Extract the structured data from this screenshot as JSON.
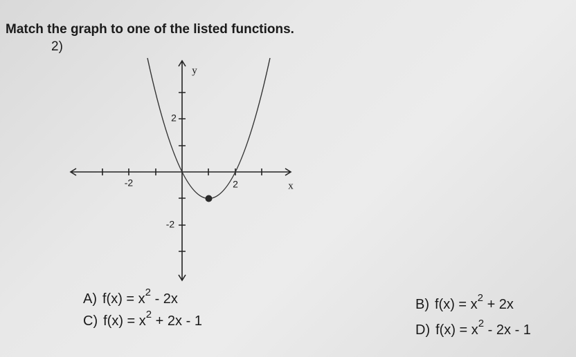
{
  "question": {
    "instruction": "Match the graph to one of the listed functions.",
    "number": "2)"
  },
  "graph": {
    "x_axis_label": "x",
    "y_axis_label": "y",
    "x_tick_labels": [
      "-2",
      "2"
    ],
    "y_tick_labels": [
      "2",
      "-2"
    ]
  },
  "options": [
    {
      "label": "A)",
      "parts": [
        "f(x) = x",
        "2",
        " - 2x"
      ]
    },
    {
      "label": "B)",
      "parts": [
        "f(x) = x",
        "2",
        " + 2x"
      ]
    },
    {
      "label": "C)",
      "parts": [
        "f(x) = x",
        "2",
        " + 2x - 1"
      ]
    },
    {
      "label": "D)",
      "parts": [
        "f(x) = x",
        "2",
        " - 2x - 1"
      ]
    }
  ]
}
